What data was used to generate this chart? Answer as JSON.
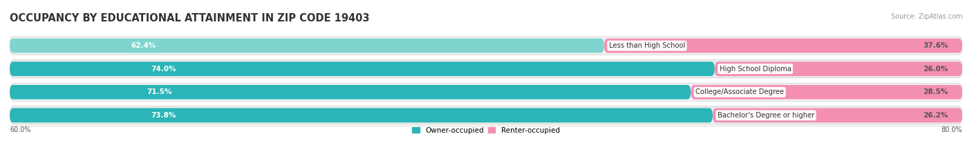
{
  "title": "OCCUPANCY BY EDUCATIONAL ATTAINMENT IN ZIP CODE 19403",
  "source": "Source: ZipAtlas.com",
  "categories": [
    "Less than High School",
    "High School Diploma",
    "College/Associate Degree",
    "Bachelor's Degree or higher"
  ],
  "owner_pct": [
    62.4,
    74.0,
    71.5,
    73.8
  ],
  "renter_pct": [
    37.6,
    26.0,
    28.5,
    26.2
  ],
  "owner_color_row0": "#7FD4D0",
  "owner_color": "#2BB5B8",
  "renter_color": "#F48FB1",
  "bar_bg_color": "#E0E0E0",
  "background_color": "#FFFFFF",
  "row_bg_even": "#F7F7F7",
  "row_bg_odd": "#EEEEEE",
  "x_left_label": "60.0%",
  "x_right_label": "80.0%",
  "owner_label": "Owner-occupied",
  "renter_label": "Renter-occupied",
  "title_fontsize": 10.5,
  "source_fontsize": 7,
  "bar_height": 0.62,
  "x_min": 0,
  "x_max": 100
}
